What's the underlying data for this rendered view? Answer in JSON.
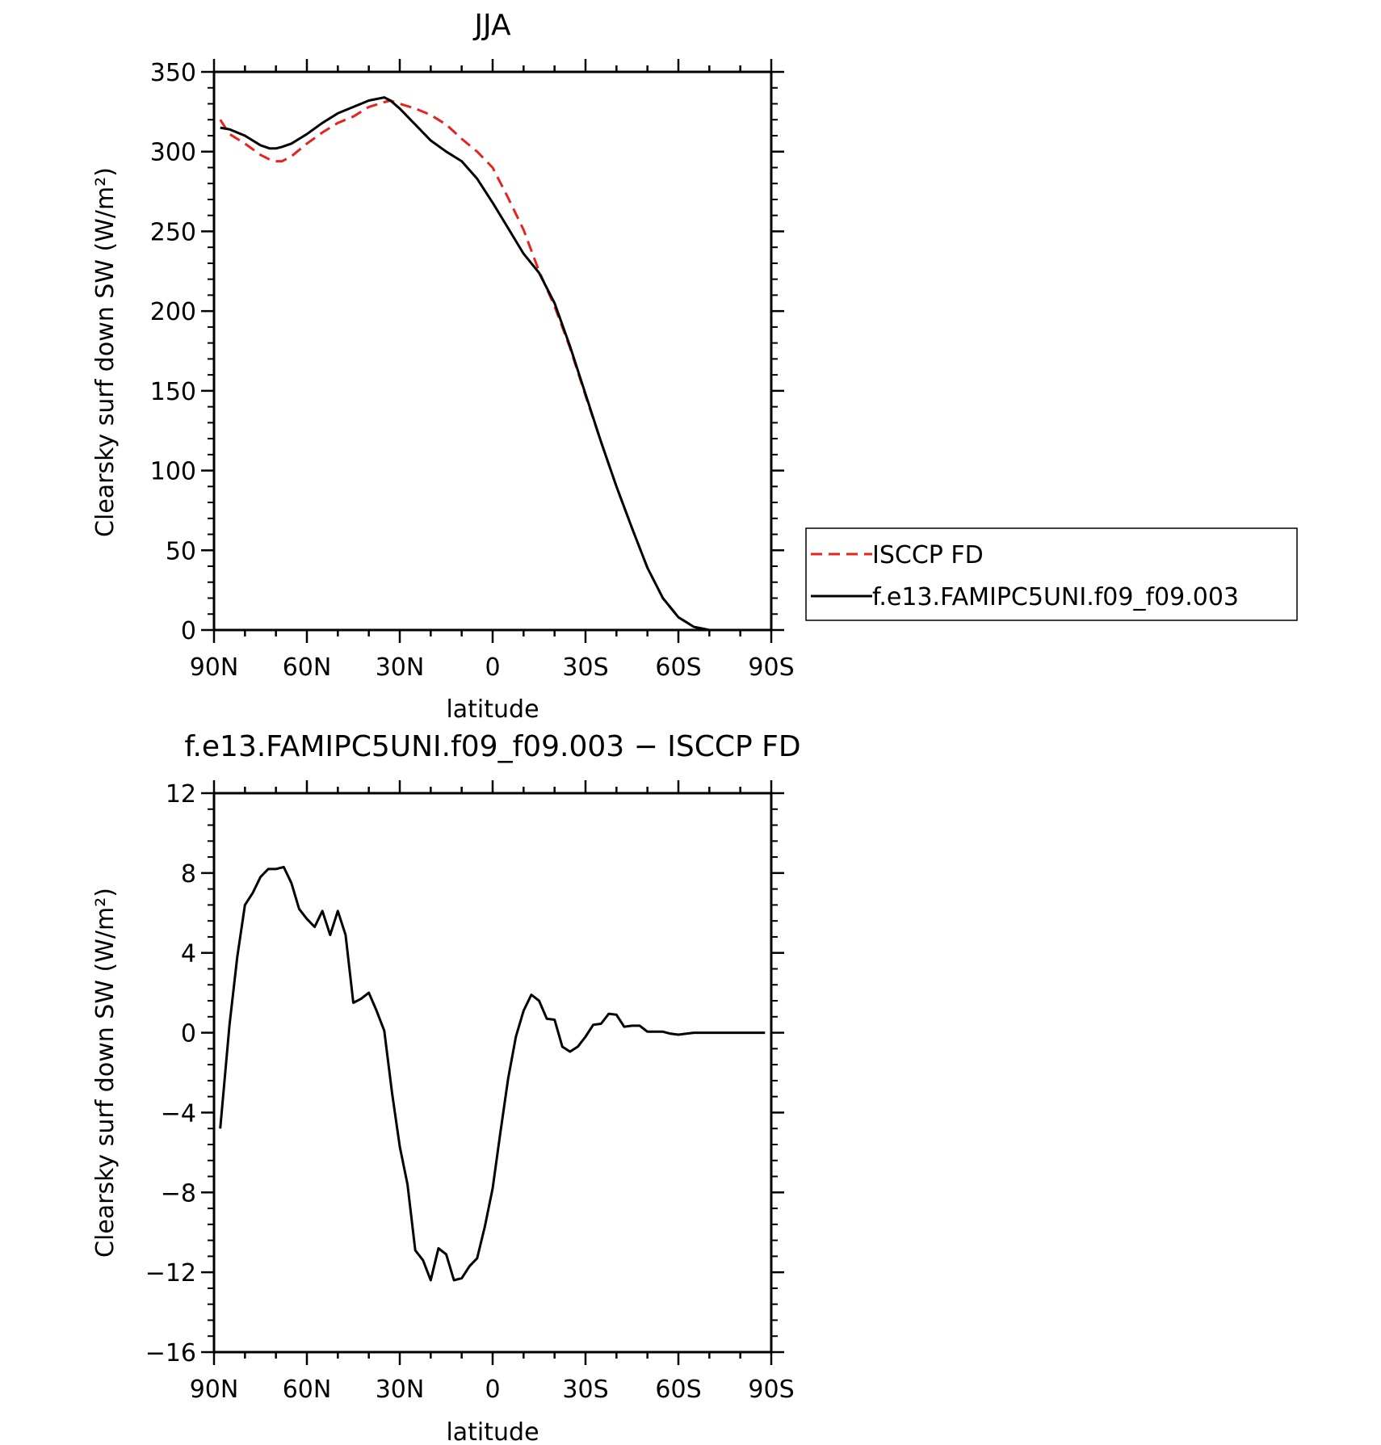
{
  "chart_data": [
    {
      "type": "line",
      "title": "JJA",
      "xlabel": "latitude",
      "ylabel": "Clearsky surf down SW (W/m²)",
      "xlim": [
        90,
        -90
      ],
      "ylim": [
        0,
        350
      ],
      "x_ticks": [
        90,
        60,
        30,
        0,
        -30,
        -60,
        -90
      ],
      "x_tick_labels": [
        "90N",
        "60N",
        "30N",
        "0",
        "30S",
        "60S",
        "90S"
      ],
      "y_ticks": [
        0,
        50,
        100,
        150,
        200,
        250,
        300,
        350
      ],
      "y_tick_labels": [
        "0",
        "50",
        "100",
        "150",
        "200",
        "250",
        "300",
        "350"
      ],
      "legend": "right",
      "series": [
        {
          "name": "ISCCP FD",
          "color": "#e8231e",
          "dash": "dashed",
          "x": [
            88,
            85,
            80,
            75,
            72,
            70,
            68,
            65,
            60,
            55,
            50,
            45,
            40,
            35,
            33,
            30,
            25,
            20,
            15,
            10,
            5,
            0,
            -5,
            -10,
            -15,
            -20,
            -25,
            -30,
            -35,
            -40,
            -45,
            -50,
            -55,
            -60,
            -65,
            -70,
            -75,
            -80,
            -85,
            -88
          ],
          "y": [
            320,
            311,
            305,
            298,
            295,
            294,
            294,
            297,
            305,
            312,
            318,
            322,
            328,
            331,
            332,
            330,
            327,
            323,
            317,
            308,
            300,
            290,
            271,
            251,
            225,
            203,
            177,
            147,
            118,
            90,
            64,
            39,
            20,
            8,
            2,
            0,
            0,
            0,
            0,
            0
          ]
        },
        {
          "name": "f.e13.FAMIPC5UNI.f09_f09.003",
          "color": "#000000",
          "dash": "solid",
          "x": [
            88,
            85,
            80,
            75,
            72,
            70,
            68,
            65,
            60,
            55,
            50,
            45,
            40,
            35,
            33,
            30,
            25,
            20,
            15,
            10,
            5,
            0,
            -5,
            -10,
            -15,
            -20,
            -25,
            -30,
            -35,
            -40,
            -45,
            -50,
            -55,
            -60,
            -65,
            -70,
            -75,
            -80,
            -85,
            -88
          ],
          "y": [
            315,
            314,
            310,
            304,
            302,
            302,
            303,
            305,
            311,
            318,
            324,
            328,
            332,
            334,
            332,
            327,
            317,
            307,
            300,
            294,
            283,
            268,
            252,
            236,
            224,
            205,
            178,
            148,
            118,
            90,
            64,
            39,
            20,
            8,
            2,
            0,
            0,
            0,
            0,
            0
          ]
        }
      ]
    },
    {
      "type": "line",
      "title": "f.e13.FAMIPC5UNI.f09_f09.003 − ISCCP FD",
      "xlabel": "latitude",
      "ylabel": "Clearsky surf down SW (W/m²)",
      "xlim": [
        90,
        -90
      ],
      "ylim": [
        -16,
        12
      ],
      "x_ticks": [
        90,
        60,
        30,
        0,
        -30,
        -60,
        -90
      ],
      "x_tick_labels": [
        "90N",
        "60N",
        "30N",
        "0",
        "30S",
        "60S",
        "90S"
      ],
      "y_ticks": [
        -16,
        -12,
        -8,
        -4,
        0,
        4,
        8,
        12
      ],
      "y_tick_labels": [
        "−16",
        "−12",
        "−8",
        "−4",
        "0",
        "4",
        "8",
        "12"
      ],
      "series": [
        {
          "color": "#000000",
          "dash": "solid",
          "x": [
            88,
            85,
            82.5,
            80,
            77.5,
            75,
            72.5,
            70,
            67.5,
            65,
            62.5,
            60,
            57.5,
            55,
            52.5,
            50,
            47.5,
            45,
            42.5,
            40,
            37.5,
            35,
            32.5,
            30,
            27.5,
            25,
            22.5,
            20,
            17.5,
            15,
            12.5,
            10,
            7.5,
            5,
            2.5,
            0,
            -2.5,
            -5,
            -7.5,
            -10,
            -12.5,
            -15,
            -17.5,
            -20,
            -22.5,
            -25,
            -27.5,
            -30,
            -32.5,
            -35,
            -37.5,
            -40,
            -42.5,
            -45,
            -47.5,
            -50,
            -52.5,
            -55,
            -57.5,
            -60,
            -62.5,
            -65,
            -67.5,
            -70,
            -72.5,
            -75,
            -77.5,
            -80,
            -82.5,
            -85,
            -88
          ],
          "y": [
            -4.8,
            0.4,
            3.8,
            6.4,
            7.0,
            7.8,
            8.2,
            8.2,
            8.3,
            7.5,
            6.2,
            5.7,
            5.3,
            6.1,
            4.9,
            6.1,
            4.9,
            1.5,
            1.7,
            2.0,
            1.1,
            0.1,
            -3.0,
            -5.7,
            -7.6,
            -10.9,
            -11.4,
            -12.4,
            -10.8,
            -11.1,
            -12.4,
            -12.3,
            -11.7,
            -11.3,
            -9.7,
            -7.8,
            -5.0,
            -2.3,
            -0.2,
            1.1,
            1.9,
            1.6,
            0.7,
            0.65,
            -0.7,
            -0.95,
            -0.7,
            -0.2,
            0.4,
            0.45,
            0.95,
            0.9,
            0.3,
            0.35,
            0.35,
            0.05,
            0.05,
            0.05,
            -0.05,
            -0.1,
            -0.05,
            0.0,
            0.0,
            0.0,
            0.0,
            0.0,
            0.0,
            0.0,
            0.0,
            0.0,
            0.0
          ]
        }
      ]
    }
  ]
}
